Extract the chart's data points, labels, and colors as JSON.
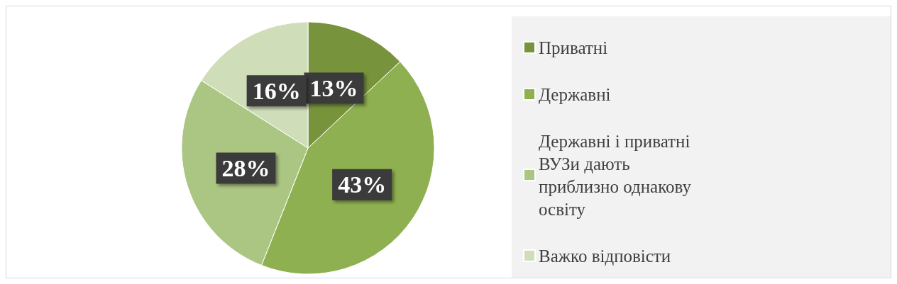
{
  "chart_data": {
    "type": "pie",
    "categories": [
      "Приватні",
      "Державні",
      "Державні і приватні ВУЗи дають приблизно однакову освіту",
      "Важко відповісти"
    ],
    "values": [
      13,
      43,
      28,
      16
    ],
    "colors": [
      "#77933c",
      "#8fb050",
      "#abc582",
      "#cfddb8"
    ],
    "value_labels": [
      "13%",
      "43%",
      "28%",
      "16%"
    ],
    "legend": "right"
  }
}
